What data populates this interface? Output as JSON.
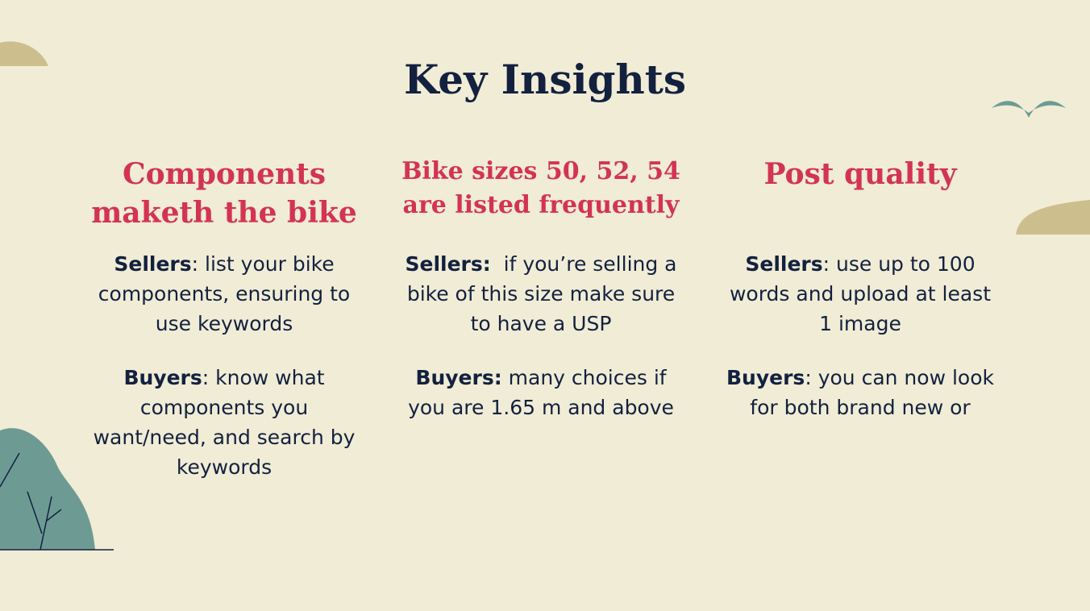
{
  "slide": {
    "title": "Key Insights",
    "columns": [
      {
        "heading": "Components maketh the bike",
        "sellers_label": "Sellers",
        "sellers_text": ": list your bike components, ensuring to use keywords",
        "buyers_label": "Buyers",
        "buyers_text": ": know what components you want/need, and search by keywords"
      },
      {
        "heading": "Bike sizes 50, 52, 54 are listed frequently",
        "sellers_label": "Sellers:",
        "sellers_text": "  if you’re selling a bike of this size make sure to have a USP",
        "buyers_label": "Buyers:",
        "buyers_text": " many choices if you are 1.65 m and above"
      },
      {
        "heading": "Post quality",
        "sellers_label": "Sellers",
        "sellers_text": ": use up to 100 words and upload at least 1 image",
        "buyers_label": "Buyers",
        "buyers_text": ": you can now look for both brand new or"
      }
    ]
  },
  "colors": {
    "background": "#f1ecd6",
    "navy": "#13213f",
    "accent_red": "#d33450",
    "teal": "#6d9b94",
    "sand": "#cdbf8d"
  },
  "decorations": [
    "sand-hill-top-left",
    "bird-icon",
    "sand-hill-right",
    "teal-bush-with-twigs"
  ]
}
